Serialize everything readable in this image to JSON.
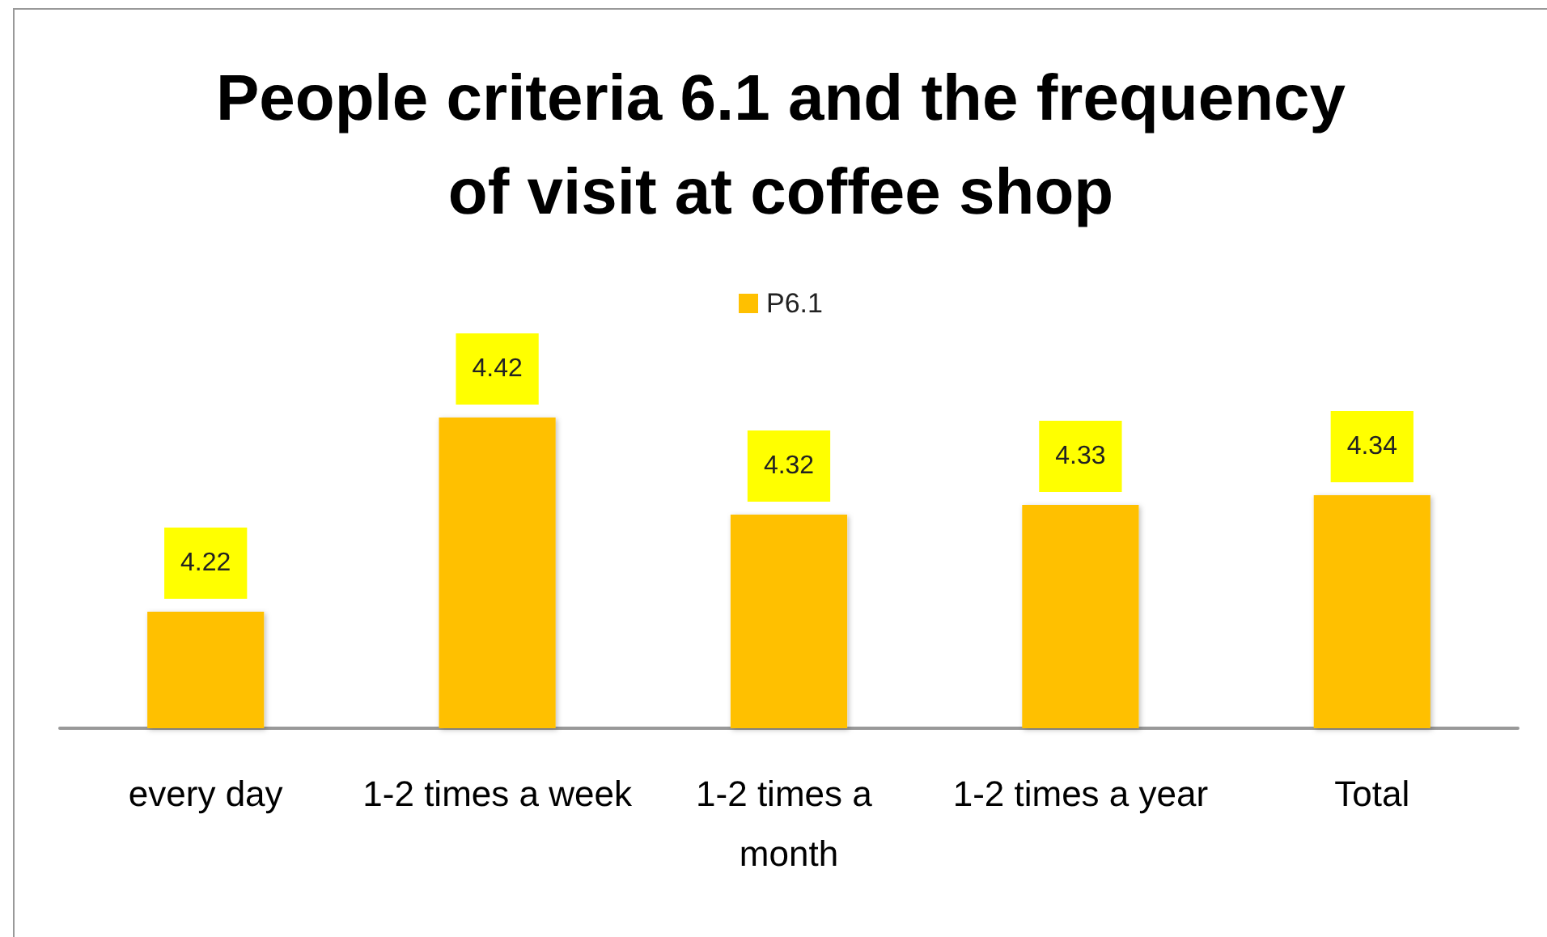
{
  "chart_data": {
    "type": "bar",
    "title": "People criteria 6.1 and the frequency of visit at coffee shop",
    "categories": [
      "every day",
      "1-2 times a week",
      "1-2 times a month",
      "1-2 times a year",
      "Total"
    ],
    "series": [
      {
        "name": "P6.1",
        "color": "#ffc000",
        "values": [
          4.22,
          4.42,
          4.32,
          4.33,
          4.34
        ]
      }
    ],
    "ylim": [
      4.1,
      4.42
    ],
    "data_labels": true,
    "legend": "top",
    "grid": false,
    "tick_labels": "x"
  }
}
